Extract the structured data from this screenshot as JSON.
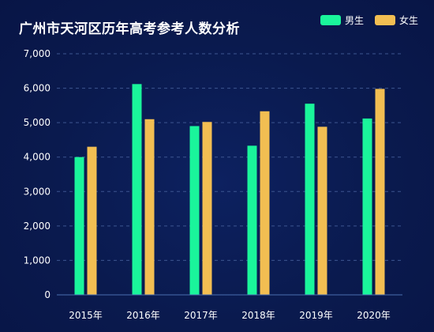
{
  "chart_data": {
    "type": "bar",
    "title": "广州市天河区历年高考参考人数分析",
    "categories": [
      "2015年",
      "2016年",
      "2017年",
      "2018年",
      "2019年",
      "2020年"
    ],
    "series": [
      {
        "name": "男生",
        "color": "#1af59b",
        "values": [
          4000,
          6120,
          4900,
          4330,
          5550,
          5120
        ]
      },
      {
        "name": "女生",
        "color": "#f2be52",
        "values": [
          4300,
          5100,
          5020,
          5330,
          4880,
          5980
        ]
      }
    ],
    "ylim": [
      0,
      7000
    ],
    "yticks": [
      "0",
      "1,000",
      "2,000",
      "3,000",
      "4,000",
      "5,000",
      "6,000",
      "7,000"
    ],
    "xlabel": "",
    "ylabel": "",
    "grid": true,
    "legend_position": "top-right"
  }
}
